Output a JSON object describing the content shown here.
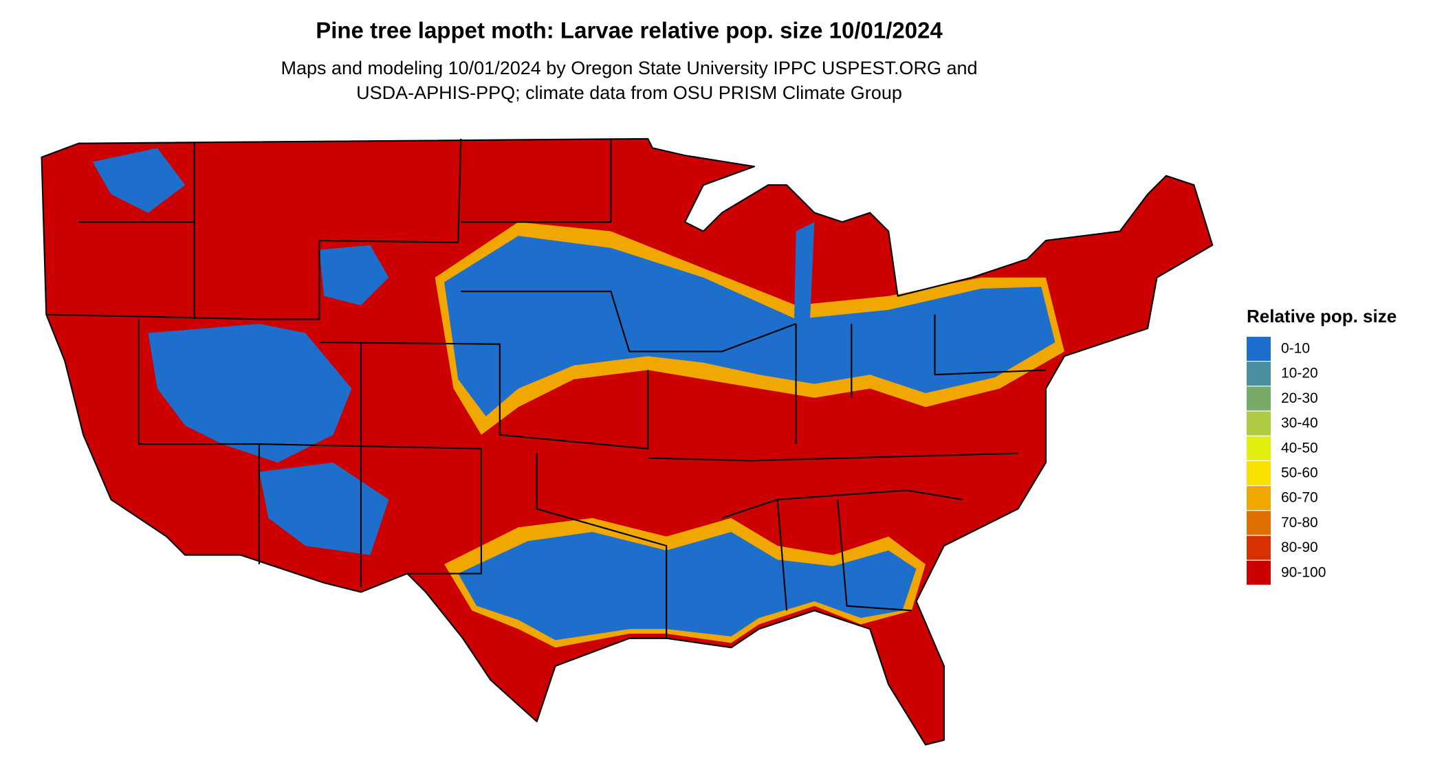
{
  "title": "Pine tree lappet moth: Larvae relative pop. size 10/01/2024",
  "subtitle": [
    "Maps and modeling 10/01/2024 by Oregon State University IPPC USPEST.ORG and",
    "USDA-APHIS-PPQ; climate data from OSU PRISM Climate Group"
  ],
  "legend": {
    "title": "Relative pop. size",
    "items": [
      {
        "label": "0-10",
        "color": "#1e6fcc"
      },
      {
        "label": "10-20",
        "color": "#4a8fa0"
      },
      {
        "label": "20-30",
        "color": "#7aaa6a"
      },
      {
        "label": "30-40",
        "color": "#b0cc44"
      },
      {
        "label": "40-50",
        "color": "#e0ee10"
      },
      {
        "label": "50-60",
        "color": "#f8e000"
      },
      {
        "label": "60-70",
        "color": "#f0a800"
      },
      {
        "label": "70-80",
        "color": "#e07000"
      },
      {
        "label": "80-90",
        "color": "#d83000"
      },
      {
        "label": "90-100",
        "color": "#cc0000"
      }
    ]
  }
}
